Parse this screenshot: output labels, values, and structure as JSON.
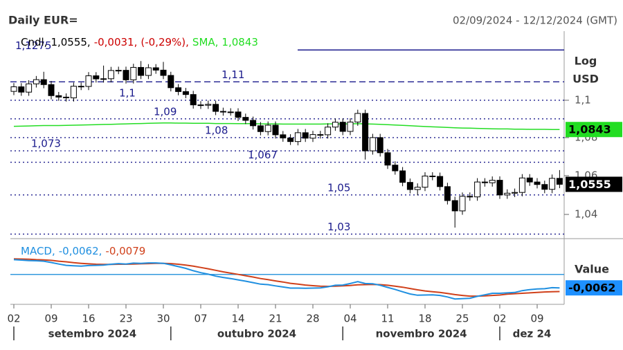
{
  "chart_data": {
    "type": "candlestick",
    "title": "Daily EUR=",
    "subtitle": "02/09/2024 - 12/12/2024 (GMT)",
    "y_axis_title": "Log",
    "y_axis_unit": "USD",
    "log_scale": true,
    "ylim": [
      1.0277,
      1.138
    ],
    "yticks": [
      {
        "value": 1.1,
        "label": "1,1"
      },
      {
        "value": 1.08,
        "label": "1,08"
      },
      {
        "value": 1.06,
        "label": "1,06"
      },
      {
        "value": 1.04,
        "label": "1,04"
      }
    ],
    "xticks": [
      {
        "value": 0,
        "label": "02"
      },
      {
        "value": 5,
        "label": "09"
      },
      {
        "value": 10,
        "label": "16"
      },
      {
        "value": 15,
        "label": "23"
      },
      {
        "value": 20,
        "label": "30"
      },
      {
        "value": 25,
        "label": "07"
      },
      {
        "value": 30,
        "label": "14"
      },
      {
        "value": 35,
        "label": "21"
      },
      {
        "value": 40,
        "label": "28"
      },
      {
        "value": 45,
        "label": "04"
      },
      {
        "value": 50,
        "label": "11"
      },
      {
        "value": 55,
        "label": "18"
      },
      {
        "value": 60,
        "label": "25"
      },
      {
        "value": 65,
        "label": "02"
      },
      {
        "value": 70,
        "label": "09"
      }
    ],
    "month_ticks": [
      {
        "value": 0,
        "label": "setembro 2024"
      },
      {
        "value": 21,
        "label": "outubro 2024"
      },
      {
        "value": 44,
        "label": "novembro 2024"
      },
      {
        "value": 65,
        "label": "dez 24"
      }
    ],
    "up_color": "#ffffff",
    "down_color": "#000000",
    "open": [
      1.1048,
      1.1073,
      1.1044,
      1.1089,
      1.1112,
      1.1085,
      1.1025,
      1.1017,
      1.1013,
      1.1076,
      1.1075,
      1.1133,
      1.1116,
      1.1117,
      1.1162,
      1.1163,
      1.1111,
      1.1179,
      1.1135,
      1.1177,
      1.1164,
      1.1135,
      1.1068,
      1.1047,
      1.1031,
      1.0975,
      1.0973,
      1.0978,
      1.094,
      1.0937,
      1.0937,
      1.0908,
      1.0892,
      1.0863,
      1.0832,
      1.0866,
      1.0815,
      1.0798,
      1.0779,
      1.0826,
      1.0797,
      1.0816,
      1.0815,
      1.0856,
      1.0882,
      1.0833,
      1.0883,
      1.0929,
      1.073,
      1.08,
      1.072,
      1.0655,
      1.0625,
      1.0565,
      1.0528,
      1.054,
      1.0598,
      1.0596,
      1.0543,
      1.0471,
      1.0418,
      1.0493,
      1.049,
      1.0567,
      1.0563,
      1.0576,
      1.05,
      1.0509,
      1.0513,
      1.0588,
      1.0567,
      1.0554,
      1.0529,
      1.0586
    ],
    "high": [
      1.1093,
      1.1093,
      1.1109,
      1.1132,
      1.1155,
      1.1105,
      1.1045,
      1.1037,
      1.1096,
      1.1096,
      1.1153,
      1.1153,
      1.1189,
      1.1182,
      1.1183,
      1.1183,
      1.1199,
      1.1214,
      1.1197,
      1.1197,
      1.1209,
      1.1155,
      1.1088,
      1.1067,
      1.1051,
      1.0995,
      1.0998,
      1.0998,
      1.096,
      1.0957,
      1.0957,
      1.0928,
      1.0912,
      1.0883,
      1.0886,
      1.0886,
      1.0835,
      1.0818,
      1.0846,
      1.0846,
      1.0836,
      1.0836,
      1.0876,
      1.0902,
      1.0902,
      1.0903,
      1.0949,
      1.0949,
      1.082,
      1.082,
      1.074,
      1.0675,
      1.0645,
      1.0585,
      1.056,
      1.0618,
      1.0618,
      1.0616,
      1.0563,
      1.0491,
      1.0513,
      1.0513,
      1.0587,
      1.0587,
      1.0596,
      1.0596,
      1.0529,
      1.0533,
      1.0608,
      1.0608,
      1.0587,
      1.0574,
      1.0606,
      1.0629
    ],
    "low": [
      1.1028,
      1.1024,
      1.1024,
      1.1069,
      1.1065,
      1.1005,
      1.0997,
      1.0993,
      1.0993,
      1.1055,
      1.1055,
      1.1096,
      1.1096,
      1.1097,
      1.1142,
      1.1091,
      1.1091,
      1.1115,
      1.1115,
      1.1144,
      1.1115,
      1.1048,
      1.1027,
      1.1011,
      1.0955,
      1.0953,
      1.0953,
      1.092,
      1.0917,
      1.0917,
      1.0888,
      1.0872,
      1.0843,
      1.0812,
      1.0812,
      1.0795,
      1.0778,
      1.0761,
      1.0759,
      1.0777,
      1.0777,
      1.0795,
      1.0795,
      1.0836,
      1.0813,
      1.0813,
      1.0863,
      1.0684,
      1.071,
      1.07,
      1.0635,
      1.0605,
      1.0545,
      1.0508,
      1.0498,
      1.052,
      1.0576,
      1.0523,
      1.0451,
      1.0333,
      1.0398,
      1.047,
      1.047,
      1.0543,
      1.0543,
      1.048,
      1.048,
      1.0489,
      1.0493,
      1.0547,
      1.0534,
      1.0509,
      1.0509,
      1.0535
    ],
    "close": [
      1.1073,
      1.1044,
      1.1089,
      1.1112,
      1.1085,
      1.1025,
      1.1017,
      1.1013,
      1.1076,
      1.1075,
      1.1133,
      1.1116,
      1.1117,
      1.1162,
      1.1163,
      1.1111,
      1.1179,
      1.1135,
      1.1177,
      1.1164,
      1.1135,
      1.1068,
      1.1047,
      1.1031,
      1.0975,
      1.0973,
      1.0978,
      1.094,
      1.0937,
      1.0937,
      1.0908,
      1.0892,
      1.0863,
      1.0832,
      1.0866,
      1.0815,
      1.0798,
      1.0779,
      1.0826,
      1.0797,
      1.0816,
      1.0815,
      1.0856,
      1.0882,
      1.0833,
      1.0883,
      1.0929,
      1.073,
      1.08,
      1.072,
      1.0655,
      1.0625,
      1.0565,
      1.0528,
      1.054,
      1.0598,
      1.0596,
      1.0543,
      1.0471,
      1.0418,
      1.0493,
      1.049,
      1.0567,
      1.0563,
      1.0576,
      1.05,
      1.0509,
      1.0513,
      1.0588,
      1.0567,
      1.0554,
      1.0529,
      1.0586,
      1.0555
    ],
    "sma": {
      "color": "#22dd22",
      "values": [
        1.086,
        1.0861,
        1.0862,
        1.0863,
        1.0864,
        1.0864,
        1.0864,
        1.0865,
        1.0866,
        1.0867,
        1.0868,
        1.0869,
        1.087,
        1.0871,
        1.0872,
        1.0873,
        1.0874,
        1.0875,
        1.0876,
        1.0877,
        1.0878,
        1.0878,
        1.0877,
        1.0877,
        1.0876,
        1.0876,
        1.0876,
        1.0875,
        1.0875,
        1.0875,
        1.0874,
        1.0874,
        1.0874,
        1.0873,
        1.0873,
        1.0873,
        1.0872,
        1.0872,
        1.0872,
        1.0872,
        1.0872,
        1.0872,
        1.0873,
        1.0873,
        1.0873,
        1.0873,
        1.0874,
        1.0873,
        1.0872,
        1.0871,
        1.0869,
        1.0867,
        1.0865,
        1.0863,
        1.0861,
        1.0859,
        1.0857,
        1.0856,
        1.0854,
        1.0852,
        1.0851,
        1.085,
        1.0849,
        1.0848,
        1.0847,
        1.0846,
        1.0846,
        1.0845,
        1.0845,
        1.0844,
        1.0844,
        1.0844,
        1.0843,
        1.0843
      ]
    },
    "level_color": "#1a1a8c",
    "levels": [
      {
        "value": 1.1275,
        "label": "1,1275",
        "style": "solid"
      },
      {
        "value": 1.11,
        "label": "1,11",
        "style": "dashed"
      },
      {
        "value": 1.1,
        "label": "1,1",
        "style": "dotted"
      },
      {
        "value": 1.09,
        "label": "1,09",
        "style": "dotted"
      },
      {
        "value": 1.08,
        "label": "1,08",
        "style": "dotted"
      },
      {
        "value": 1.073,
        "label": "1,073",
        "style": "dotted"
      },
      {
        "value": 1.067,
        "label": "1,067",
        "style": "dotted"
      },
      {
        "value": 1.05,
        "label": "1,05",
        "style": "dotted"
      },
      {
        "value": 1.03,
        "label": "1,03",
        "style": "dotted"
      }
    ],
    "legend": {
      "name": "Cndl,",
      "close": {
        "value": 1.0555,
        "label": "1,0555,"
      },
      "change": {
        "value": -0.0031,
        "label": "-0,0031,",
        "color": "#cc0000"
      },
      "change_pct": {
        "value": -0.29,
        "label": "(-0,29%),",
        "color": "#cc0000"
      },
      "sma_name": "SMA,",
      "sma": {
        "value": 1.0843,
        "label": "1,0843"
      }
    },
    "price_box": {
      "value": 1.0555,
      "label": "1,0555",
      "color": "#000000"
    },
    "sma_box": {
      "value": 1.0843,
      "label": "1,0843",
      "color": "#22dd22"
    },
    "macd": {
      "axis_title": "Value",
      "ylim": [
        -0.0138,
        0.0165
      ],
      "reference_line": 0,
      "reference_color": "#3399dd",
      "legend_name": "MACD,",
      "macd_value": {
        "value": -0.0062,
        "label": "-0,0062,"
      },
      "signal_value": {
        "value": -0.0079,
        "label": "-0,0079"
      },
      "value_box": {
        "value": -0.0062,
        "label": "-0,0062",
        "color": "#1e90ff"
      },
      "macd_line": {
        "color": "#1f8fe0",
        "values": [
          0.0068,
          0.0066,
          0.0064,
          0.0063,
          0.0061,
          0.0055,
          0.0048,
          0.0042,
          0.004,
          0.0038,
          0.0041,
          0.0042,
          0.0043,
          0.0047,
          0.005,
          0.0048,
          0.0052,
          0.0051,
          0.0053,
          0.0053,
          0.0051,
          0.0044,
          0.0036,
          0.0028,
          0.0017,
          0.0008,
          0.0001,
          -0.0008,
          -0.0014,
          -0.0019,
          -0.0025,
          -0.0031,
          -0.0038,
          -0.0045,
          -0.0047,
          -0.0053,
          -0.0058,
          -0.0063,
          -0.0063,
          -0.0064,
          -0.0063,
          -0.0062,
          -0.0057,
          -0.005,
          -0.0049,
          -0.0042,
          -0.0033,
          -0.0042,
          -0.0043,
          -0.005,
          -0.006,
          -0.0069,
          -0.008,
          -0.009,
          -0.0096,
          -0.0095,
          -0.0094,
          -0.0097,
          -0.0104,
          -0.0113,
          -0.0112,
          -0.011,
          -0.0101,
          -0.0094,
          -0.0087,
          -0.0087,
          -0.0085,
          -0.0083,
          -0.0075,
          -0.007,
          -0.0067,
          -0.0066,
          -0.0061,
          -0.0062
        ]
      },
      "signal_line": {
        "color": "#d0401a",
        "values": [
          0.0072,
          0.0071,
          0.007,
          0.0068,
          0.0067,
          0.0065,
          0.0061,
          0.0058,
          0.0054,
          0.0051,
          0.0049,
          0.0047,
          0.0046,
          0.0046,
          0.0047,
          0.0047,
          0.0048,
          0.0049,
          0.005,
          0.0051,
          0.0051,
          0.005,
          0.0047,
          0.0043,
          0.0038,
          0.0032,
          0.0026,
          0.0019,
          0.0012,
          0.0006,
          0.0,
          -0.0006,
          -0.0012,
          -0.0019,
          -0.0024,
          -0.003,
          -0.0035,
          -0.0041,
          -0.0045,
          -0.0049,
          -0.0052,
          -0.0054,
          -0.0055,
          -0.0054,
          -0.0053,
          -0.0051,
          -0.0048,
          -0.0047,
          -0.0046,
          -0.0047,
          -0.005,
          -0.0054,
          -0.0059,
          -0.0065,
          -0.0071,
          -0.0076,
          -0.008,
          -0.0083,
          -0.0088,
          -0.0093,
          -0.0097,
          -0.01,
          -0.01,
          -0.0099,
          -0.0097,
          -0.0095,
          -0.0091,
          -0.0089,
          -0.0087,
          -0.0085,
          -0.0083,
          -0.0081,
          -0.008,
          -0.0079
        ]
      }
    }
  }
}
